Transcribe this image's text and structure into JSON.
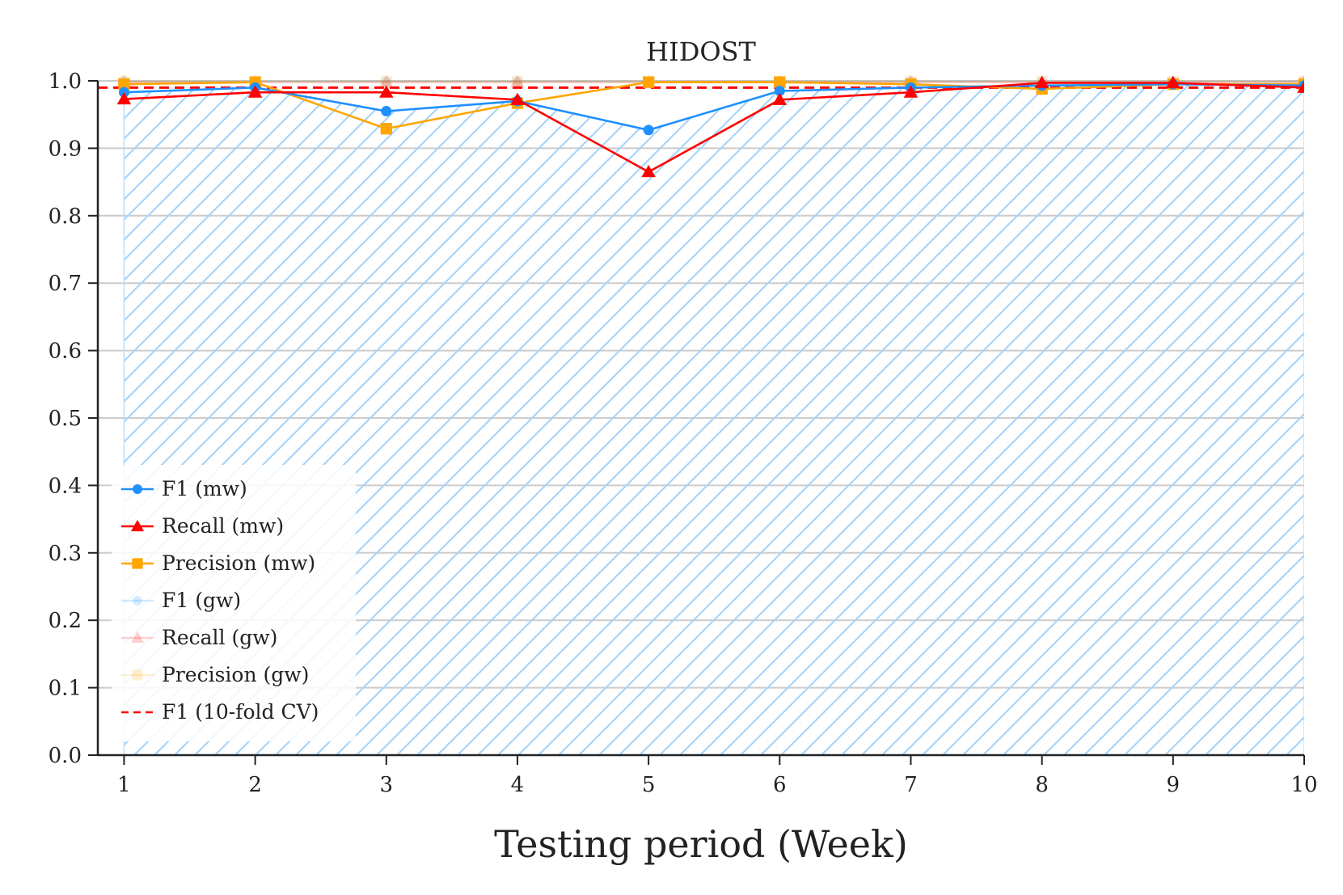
{
  "chart_data": {
    "type": "line",
    "title": "HIDOST",
    "xlabel": "Testing period (Week)",
    "ylabel": "",
    "x": [
      1,
      2,
      3,
      4,
      5,
      6,
      7,
      8,
      9,
      10
    ],
    "x_ticks": [
      "1",
      "2",
      "3",
      "4",
      "5",
      "6",
      "7",
      "8",
      "9",
      "10"
    ],
    "xlim": [
      0.8,
      10
    ],
    "ylim": [
      0,
      1.0
    ],
    "y_ticks": [
      "0.0",
      "0.1",
      "0.2",
      "0.3",
      "0.4",
      "0.5",
      "0.6",
      "0.7",
      "0.8",
      "0.9",
      "1.0"
    ],
    "y_tick_values": [
      0,
      0.1,
      0.2,
      0.3,
      0.4,
      0.5,
      0.6,
      0.7,
      0.8,
      0.9,
      1.0
    ],
    "grid": "horizontal",
    "legend_position": "lower-left",
    "hatched_area": "under F1 (mw) curve",
    "series": [
      {
        "name": "F1 (mw)",
        "color": "#1e90ff",
        "marker": "circle",
        "faded": false,
        "values": [
          0.983,
          0.99,
          0.955,
          0.97,
          0.927,
          0.985,
          0.99,
          0.993,
          0.995,
          0.993
        ]
      },
      {
        "name": "Recall (mw)",
        "color": "#ff0000",
        "marker": "triangle",
        "faded": false,
        "values": [
          0.973,
          0.983,
          0.983,
          0.972,
          0.865,
          0.972,
          0.983,
          0.997,
          0.997,
          0.99
        ]
      },
      {
        "name": "Precision (mw)",
        "color": "#ffa500",
        "marker": "square",
        "faded": false,
        "values": [
          0.995,
          0.998,
          0.929,
          0.967,
          0.998,
          0.998,
          0.995,
          0.988,
          0.995,
          0.995
        ]
      },
      {
        "name": "F1 (gw)",
        "color": "#1e90ff",
        "marker": "circle",
        "faded": true,
        "values": [
          0.999,
          0.999,
          0.999,
          0.999,
          0.999,
          0.999,
          0.999,
          0.999,
          0.999,
          0.999
        ]
      },
      {
        "name": "Recall (gw)",
        "color": "#ff0000",
        "marker": "triangle",
        "faded": true,
        "values": [
          0.998,
          0.998,
          0.998,
          0.998,
          0.998,
          0.998,
          0.998,
          0.998,
          0.998,
          0.998
        ]
      },
      {
        "name": "Precision (gw)",
        "color": "#ffa500",
        "marker": "square",
        "faded": true,
        "values": [
          0.999,
          0.999,
          0.999,
          0.999,
          0.999,
          0.999,
          0.999,
          0.999,
          0.999,
          0.999
        ]
      },
      {
        "name": "F1 (10-fold CV)",
        "color": "#ff0000",
        "marker": "none",
        "dashed": true,
        "faded": false,
        "values": [
          0.99,
          0.99,
          0.99,
          0.99,
          0.99,
          0.99,
          0.99,
          0.99,
          0.99,
          0.99
        ]
      }
    ]
  }
}
